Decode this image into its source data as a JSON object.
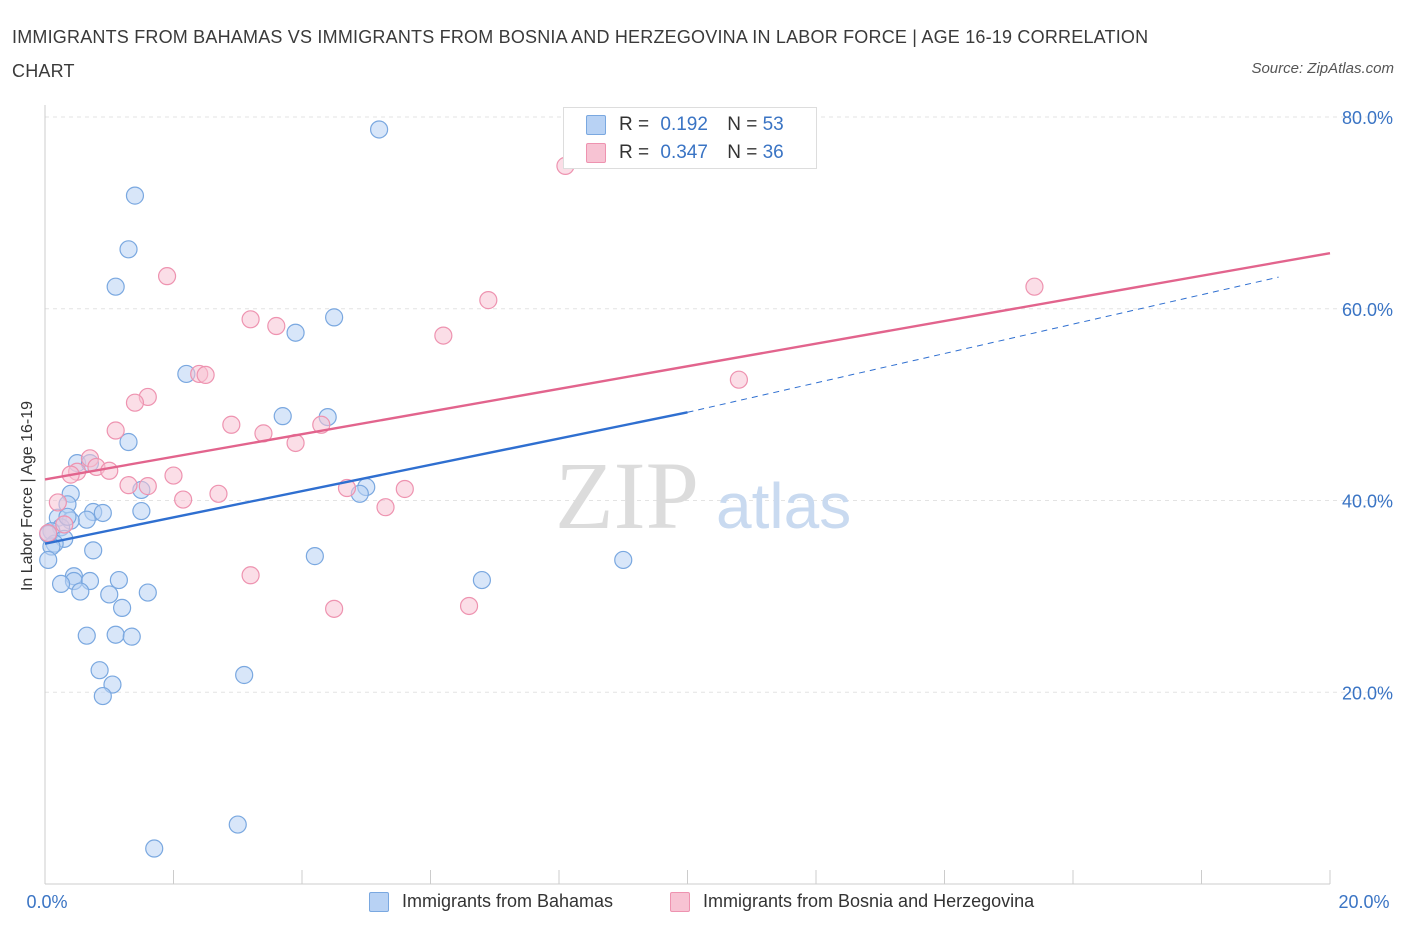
{
  "title": "IMMIGRANTS FROM BAHAMAS VS IMMIGRANTS FROM BOSNIA AND HERZEGOVINA IN LABOR FORCE | AGE 16-19 CORRELATION CHART",
  "source": "Source: ZipAtlas.com",
  "watermark": {
    "zip": "ZIP",
    "atlas": "atlas"
  },
  "colors": {
    "blue_fill": "#b8d2f4",
    "blue_stroke": "#7aa8e0",
    "blue_line": "#2f6fd0",
    "pink_fill": "#f7c3d3",
    "pink_stroke": "#ee93b0",
    "pink_line": "#e2648d",
    "grid": "#e3e3e3",
    "axis": "#cccccc",
    "tick_label": "#3a74c4"
  },
  "legend": {
    "rows": [
      {
        "r_label": "R =",
        "r_value": "0.192",
        "n_label": "N =",
        "n_value": "53"
      },
      {
        "r_label": "R =",
        "r_value": "0.347",
        "n_label": "N =",
        "n_value": "36"
      }
    ]
  },
  "chart_data": {
    "type": "scatter",
    "title": "IMMIGRANTS FROM BAHAMAS VS IMMIGRANTS FROM BOSNIA AND HERZEGOVINA IN LABOR FORCE | AGE 16-19 CORRELATION CHART",
    "xlabel": "",
    "ylabel": "In Labor Force | Age 16-19",
    "xlim": [
      0,
      20
    ],
    "ylim": [
      0,
      80
    ],
    "x_tick_labels": [
      "0.0%",
      "20.0%"
    ],
    "y_ticks": [
      {
        "value": 20,
        "label": "20.0%"
      },
      {
        "value": 40,
        "label": "40.0%"
      },
      {
        "value": 60,
        "label": "60.0%"
      },
      {
        "value": 80,
        "label": "80.0%"
      }
    ],
    "grid": true,
    "legend_position": "top-center",
    "series": [
      {
        "name": "Immigrants from Bahamas",
        "color": "blue",
        "R": 0.192,
        "N": 53,
        "trend": {
          "x0": 0,
          "y0": 35.5,
          "x1": 10,
          "y1": 49.2,
          "dashed_to_x": 19.2,
          "dashed_y": 63.3
        },
        "points": [
          [
            5.2,
            78.7
          ],
          [
            1.4,
            71.8
          ],
          [
            1.3,
            66.2
          ],
          [
            1.1,
            62.3
          ],
          [
            4.5,
            59.1
          ],
          [
            3.9,
            57.5
          ],
          [
            2.2,
            53.2
          ],
          [
            3.7,
            48.8
          ],
          [
            4.4,
            48.7
          ],
          [
            1.3,
            46.1
          ],
          [
            0.5,
            43.9
          ],
          [
            0.7,
            43.9
          ],
          [
            5.0,
            41.4
          ],
          [
            1.5,
            41.1
          ],
          [
            0.4,
            40.7
          ],
          [
            4.9,
            40.7
          ],
          [
            0.35,
            39.6
          ],
          [
            0.75,
            38.8
          ],
          [
            0.9,
            38.7
          ],
          [
            1.5,
            38.9
          ],
          [
            0.2,
            38.2
          ],
          [
            0.65,
            38.0
          ],
          [
            0.4,
            37.9
          ],
          [
            0.25,
            37.2
          ],
          [
            0.1,
            36.8
          ],
          [
            0.3,
            36.0
          ],
          [
            0.15,
            35.5
          ],
          [
            0.1,
            35.2
          ],
          [
            0.05,
            33.8
          ],
          [
            0.75,
            34.8
          ],
          [
            4.2,
            34.2
          ],
          [
            9.0,
            33.8
          ],
          [
            0.45,
            32.1
          ],
          [
            0.45,
            31.6
          ],
          [
            0.7,
            31.6
          ],
          [
            1.15,
            31.7
          ],
          [
            0.25,
            31.3
          ],
          [
            6.8,
            31.7
          ],
          [
            0.55,
            30.5
          ],
          [
            1.0,
            30.2
          ],
          [
            1.6,
            30.4
          ],
          [
            1.2,
            28.8
          ],
          [
            0.65,
            25.9
          ],
          [
            1.1,
            26.0
          ],
          [
            1.35,
            25.8
          ],
          [
            0.85,
            22.3
          ],
          [
            3.1,
            21.8
          ],
          [
            1.05,
            20.8
          ],
          [
            0.9,
            19.6
          ],
          [
            3.0,
            6.2
          ],
          [
            1.7,
            3.7
          ],
          [
            0.05,
            36.5
          ],
          [
            0.35,
            38.3
          ]
        ]
      },
      {
        "name": "Immigrants from Bosnia and Herzegovina",
        "color": "pink",
        "R": 0.347,
        "N": 36,
        "trend": {
          "x0": 0,
          "y0": 42.2,
          "x1": 20,
          "y1": 65.8
        },
        "points": [
          [
            8.1,
            74.9
          ],
          [
            1.9,
            63.4
          ],
          [
            6.9,
            60.9
          ],
          [
            15.4,
            62.3
          ],
          [
            3.2,
            58.9
          ],
          [
            3.6,
            58.2
          ],
          [
            6.2,
            57.2
          ],
          [
            2.4,
            53.2
          ],
          [
            2.5,
            53.1
          ],
          [
            10.8,
            52.6
          ],
          [
            1.6,
            50.8
          ],
          [
            1.4,
            50.2
          ],
          [
            1.1,
            47.3
          ],
          [
            2.9,
            47.9
          ],
          [
            3.4,
            47.0
          ],
          [
            4.3,
            47.9
          ],
          [
            3.9,
            46.0
          ],
          [
            0.7,
            44.4
          ],
          [
            0.8,
            43.5
          ],
          [
            0.5,
            43.0
          ],
          [
            1.0,
            43.1
          ],
          [
            0.4,
            42.7
          ],
          [
            2.0,
            42.6
          ],
          [
            1.3,
            41.6
          ],
          [
            1.6,
            41.5
          ],
          [
            4.7,
            41.3
          ],
          [
            5.6,
            41.2
          ],
          [
            2.7,
            40.7
          ],
          [
            2.15,
            40.1
          ],
          [
            0.2,
            39.8
          ],
          [
            5.3,
            39.3
          ],
          [
            0.3,
            37.5
          ],
          [
            0.05,
            36.6
          ],
          [
            3.2,
            32.2
          ],
          [
            4.5,
            28.7
          ],
          [
            6.6,
            29.0
          ]
        ]
      }
    ]
  },
  "bottom_legend": [
    {
      "label": "Immigrants from Bahamas"
    },
    {
      "label": "Immigrants from Bosnia and Herzegovina"
    }
  ]
}
